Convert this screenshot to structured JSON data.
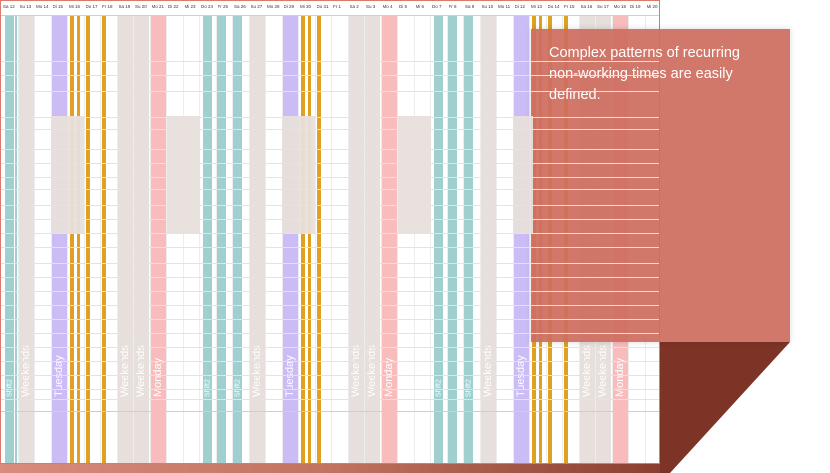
{
  "day_labels": [
    "Sa 12",
    "Su 13",
    "Mo 14",
    "Di 15",
    "Mi 16",
    "Do 17",
    "Fr 18",
    "Sa 19",
    "Su 20",
    "Mo 21",
    "Di 22",
    "Mi 23",
    "Do 24",
    "Fr 25",
    "Sa 26",
    "Su 27",
    "Mo 28",
    "Di 29",
    "Mi 30",
    "Do 31",
    "Fr 1",
    "Sa 2",
    "Su 3",
    "Mo 4",
    "Di 5",
    "Mi 6",
    "Do 7",
    "Fr 8",
    "Sa 9",
    "Su 10",
    "Mo 11",
    "Di 12",
    "Mi 13",
    "Do 14",
    "Fr 15",
    "Sa 16",
    "Su 17",
    "Mo 18",
    "Di 19",
    "Mi 20"
  ],
  "column_labels": {
    "shift2": "Shift2",
    "weekends": "Weekends",
    "tuesday": "Tuesday",
    "monday": "Monday"
  },
  "colors": {
    "teal": "#9fd0cf",
    "purple": "#cbbcf6",
    "orange": "#e0a021",
    "pink": "#f9bcbc",
    "beige": "#e7dfdb",
    "callout": "#cd6e60",
    "border": "#d97a6c"
  },
  "callout": {
    "text": "Complex patterns of recurring non-working times are easily defined."
  }
}
